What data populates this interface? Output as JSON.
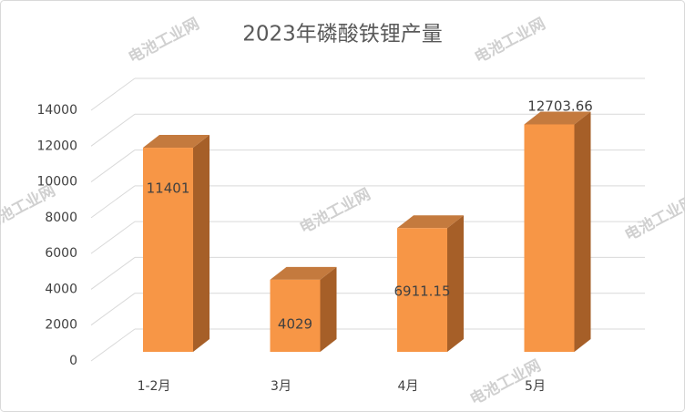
{
  "chart_data": {
    "type": "bar3d",
    "title": "2023年磷酸铁锂产量",
    "categories": [
      "1-2月",
      "3月",
      "4月",
      "5月"
    ],
    "values": [
      11401,
      4029,
      6911.15,
      12703.66
    ],
    "color": "#f79646",
    "ylim": [
      0,
      14000
    ],
    "yticks": [
      0,
      2000,
      4000,
      6000,
      8000,
      10000,
      12000,
      14000
    ],
    "grid": true,
    "watermark": "电池工业网"
  }
}
